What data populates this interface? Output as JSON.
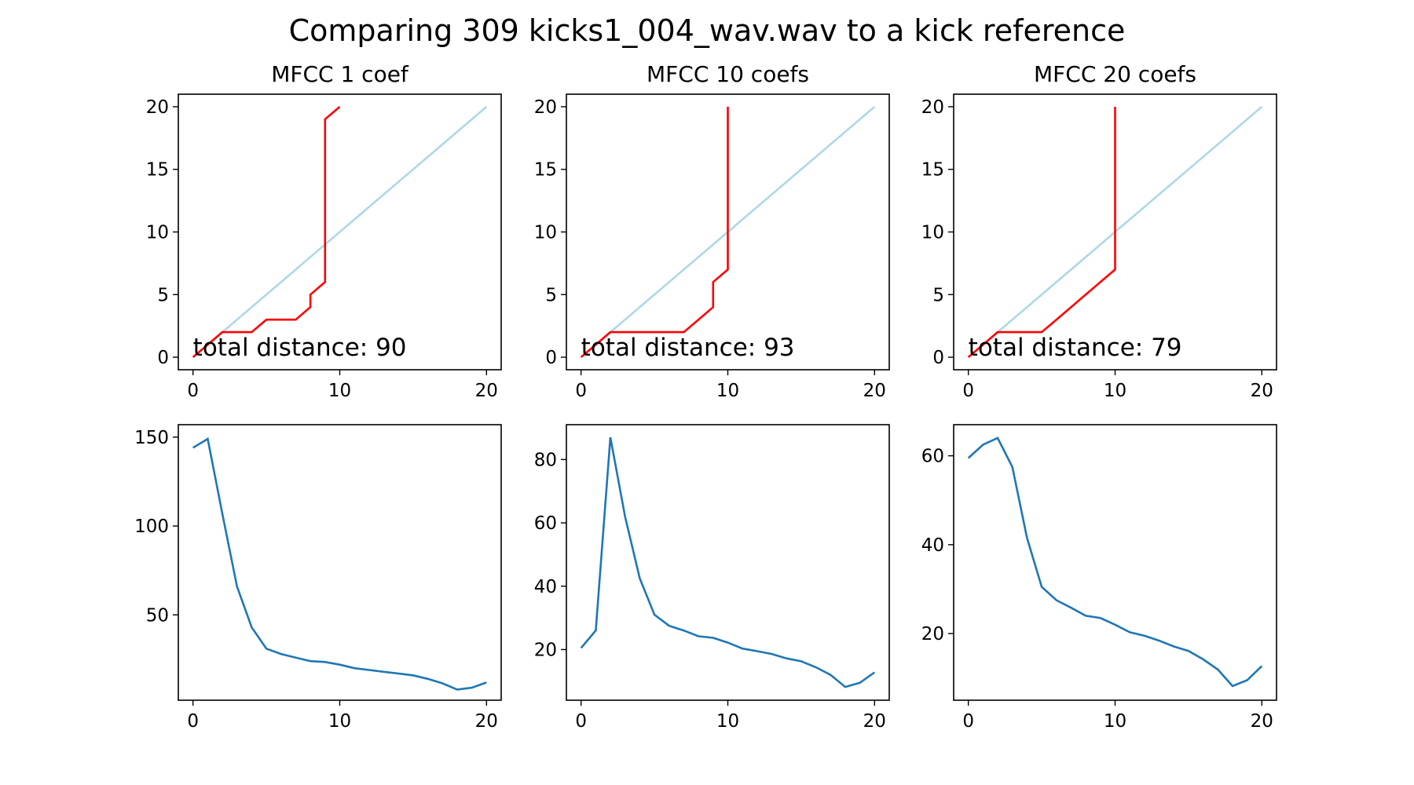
{
  "title": "Comparing 309 kicks1_004_wav.wav to a kick reference",
  "colors": {
    "path": "#ff0000",
    "diagonal": "#add8e6",
    "cost": "#1f77b4"
  },
  "chart_data": [
    {
      "type": "line",
      "title": "MFCC 1 coef",
      "annotation": "total distance: 90",
      "xlim": [
        -1,
        21
      ],
      "ylim": [
        -1,
        21
      ],
      "xticks": [
        0,
        10,
        20
      ],
      "yticks": [
        0,
        5,
        10,
        15,
        20
      ],
      "series": [
        {
          "role": "diagonal",
          "x": [
            0,
            20
          ],
          "y": [
            0,
            20
          ]
        },
        {
          "role": "path",
          "x": [
            0,
            1,
            2,
            3,
            4,
            5,
            6,
            7,
            8,
            8,
            9,
            9,
            10
          ],
          "y": [
            0,
            1,
            2,
            2,
            2,
            3,
            3,
            3,
            4,
            5,
            6,
            19,
            20
          ]
        }
      ]
    },
    {
      "type": "line",
      "title": "MFCC 10 coefs",
      "annotation": "total distance: 93",
      "xlim": [
        -1,
        21
      ],
      "ylim": [
        -1,
        21
      ],
      "xticks": [
        0,
        10,
        20
      ],
      "yticks": [
        0,
        5,
        10,
        15,
        20
      ],
      "series": [
        {
          "role": "diagonal",
          "x": [
            0,
            20
          ],
          "y": [
            0,
            20
          ]
        },
        {
          "role": "path",
          "x": [
            0,
            1,
            2,
            3,
            4,
            5,
            6,
            7,
            8,
            9,
            9,
            10,
            10
          ],
          "y": [
            0,
            1,
            2,
            2,
            2,
            2,
            2,
            2,
            3,
            4,
            6,
            7,
            20
          ]
        }
      ]
    },
    {
      "type": "line",
      "title": "MFCC 20 coefs",
      "annotation": "total distance: 79",
      "xlim": [
        -1,
        21
      ],
      "ylim": [
        -1,
        21
      ],
      "xticks": [
        0,
        10,
        20
      ],
      "yticks": [
        0,
        5,
        10,
        15,
        20
      ],
      "series": [
        {
          "role": "diagonal",
          "x": [
            0,
            20
          ],
          "y": [
            0,
            20
          ]
        },
        {
          "role": "path",
          "x": [
            0,
            1,
            2,
            3,
            4,
            5,
            6,
            7,
            8,
            9,
            10,
            10
          ],
          "y": [
            0,
            1,
            2,
            2,
            2,
            2,
            3,
            4,
            5,
            6,
            7,
            20
          ]
        }
      ]
    },
    {
      "type": "line",
      "xlim": [
        -1,
        21
      ],
      "ylim": [
        2,
        157
      ],
      "xticks": [
        0,
        10,
        20
      ],
      "yticks": [
        50,
        100,
        150
      ],
      "series": [
        {
          "role": "cost",
          "x": [
            0,
            1,
            2,
            3,
            4,
            5,
            6,
            7,
            8,
            9,
            10,
            11,
            12,
            13,
            14,
            15,
            16,
            17,
            18,
            19,
            20
          ],
          "y": [
            144,
            149,
            107,
            66,
            43,
            31,
            28,
            26,
            24,
            23.5,
            22,
            20,
            19,
            18,
            17,
            16,
            14,
            11.5,
            8,
            9,
            12
          ]
        }
      ]
    },
    {
      "type": "line",
      "xlim": [
        -1,
        21
      ],
      "ylim": [
        4,
        91
      ],
      "xticks": [
        0,
        10,
        20
      ],
      "yticks": [
        20,
        40,
        60,
        80
      ],
      "series": [
        {
          "role": "cost",
          "x": [
            0,
            1,
            2,
            3,
            4,
            5,
            6,
            7,
            8,
            9,
            10,
            11,
            12,
            13,
            14,
            15,
            16,
            17,
            18,
            19,
            20
          ],
          "y": [
            20.5,
            26,
            87,
            62,
            42.5,
            31,
            27.5,
            26,
            24.2,
            23.7,
            22.2,
            20.3,
            19.5,
            18.6,
            17.2,
            16.3,
            14.4,
            12,
            8.2,
            9.5,
            12.8
          ]
        }
      ]
    },
    {
      "type": "line",
      "xlim": [
        -1,
        21
      ],
      "ylim": [
        5,
        67
      ],
      "xticks": [
        0,
        10,
        20
      ],
      "yticks": [
        20,
        40,
        60
      ],
      "series": [
        {
          "role": "cost",
          "x": [
            0,
            1,
            2,
            3,
            4,
            5,
            6,
            7,
            8,
            9,
            10,
            11,
            12,
            13,
            14,
            15,
            16,
            17,
            18,
            19,
            20
          ],
          "y": [
            59.5,
            62.5,
            64,
            57.5,
            41.5,
            30.5,
            27.5,
            25.8,
            24,
            23.5,
            22,
            20.3,
            19.5,
            18.4,
            17.1,
            16.1,
            14.2,
            11.9,
            8.2,
            9.5,
            12.7
          ]
        }
      ]
    }
  ]
}
